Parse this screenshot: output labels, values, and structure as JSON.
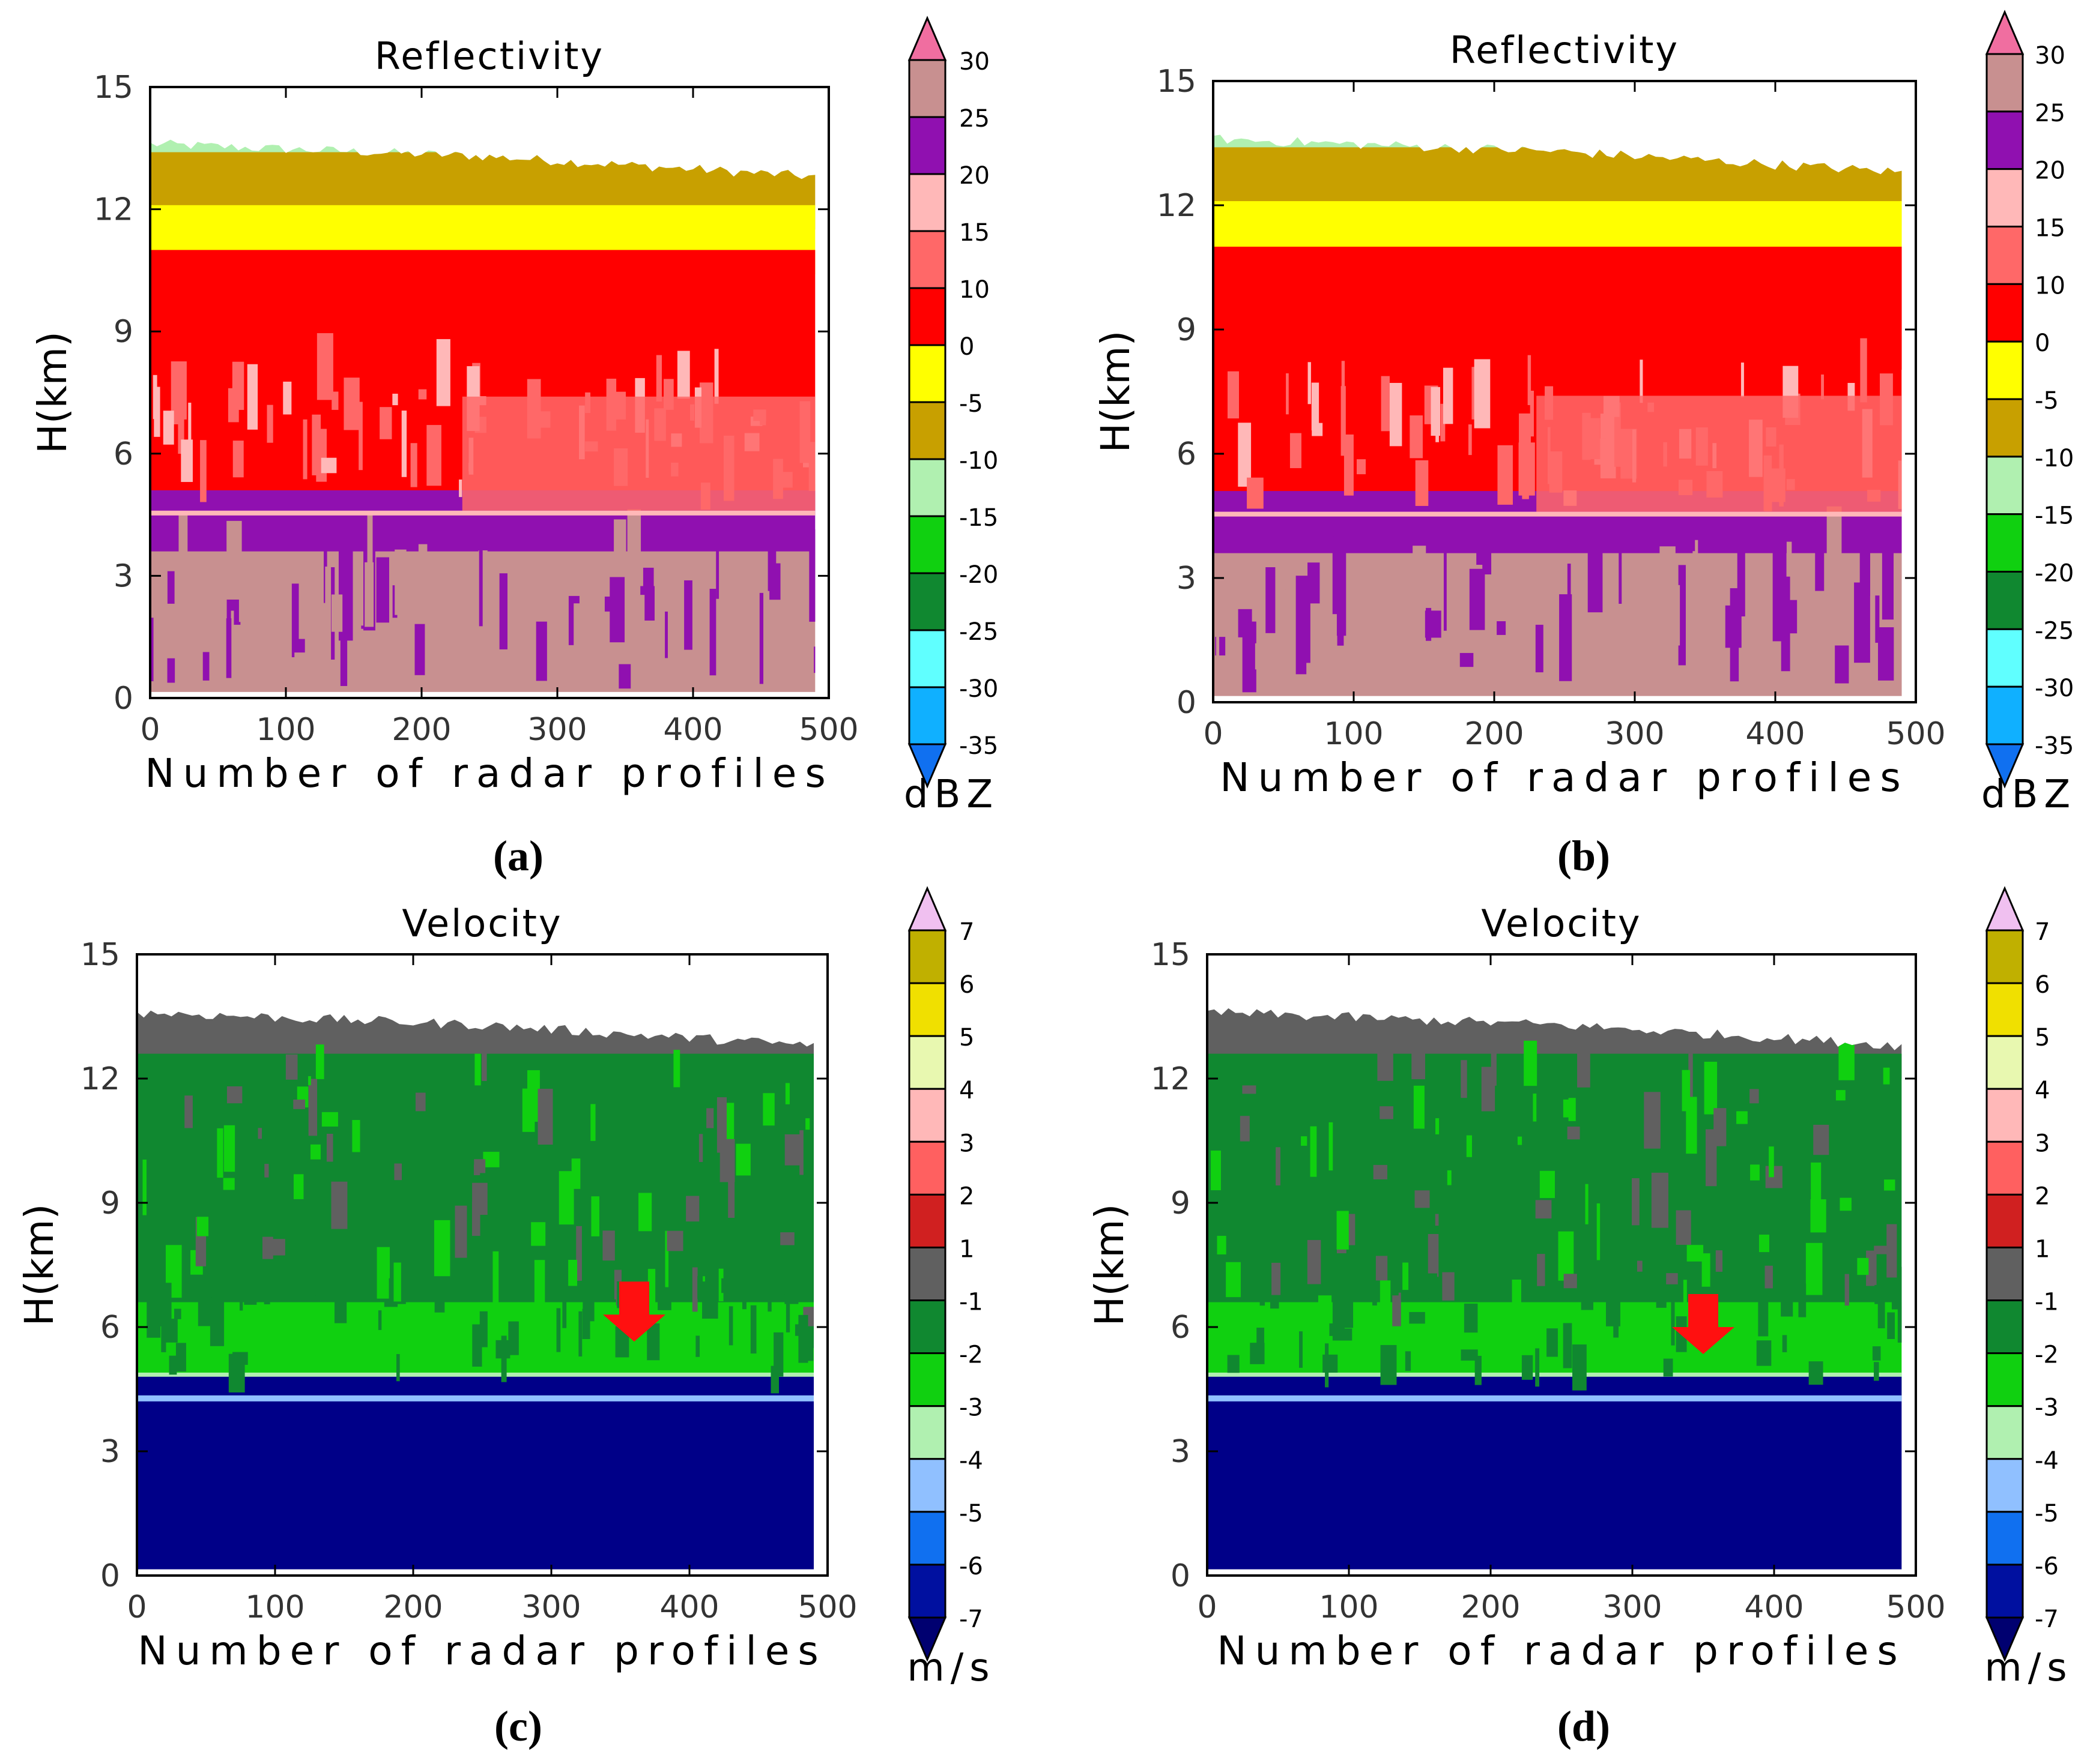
{
  "figure_labels": [
    "(a)",
    "(b)",
    "(c)",
    "(d)"
  ],
  "chart_data": [
    {
      "panel": "a",
      "type": "heatmap",
      "title": "Reflectivity",
      "xlabel": "Number of radar profiles",
      "ylabel": "H(km)",
      "xlim": [
        0,
        500
      ],
      "ylim": [
        0,
        15
      ],
      "xticks": [
        "0",
        "100",
        "200",
        "300",
        "400",
        "500"
      ],
      "yticks": [
        "0",
        "3",
        "6",
        "9",
        "12",
        "15"
      ],
      "colorbar_unit": "dBZ",
      "colorbar_ticks": [
        "30",
        "25",
        "20",
        "15",
        "10",
        "0",
        "-5",
        "-10",
        "-15",
        "-20",
        "-25",
        "-30",
        "-35"
      ],
      "colorbar_colors": [
        "#f06ea0",
        "#c89090",
        "#9010b0",
        "#ffb8b8",
        "#ff6868",
        "#ff0000",
        "#ffff00",
        "#c8a000",
        "#b0f0b0",
        "#10d010",
        "#108830",
        "#60ffff",
        "#10b0ff",
        "#1070f0"
      ],
      "layers": [
        {
          "from_km": 0.0,
          "to_km": 3.0,
          "range_dBZ": "20 to 30",
          "color": "#c89090"
        },
        {
          "from_km": 3.0,
          "to_km": 4.5,
          "range_dBZ": "20 to 25",
          "color": "#9010b0"
        },
        {
          "from_km": 4.5,
          "to_km": 10.4,
          "range_dBZ": "0 to 15",
          "color": "#ff0000"
        },
        {
          "from_km": 10.4,
          "to_km": 11.5,
          "range_dBZ": "-5 to 0",
          "color": "#ffff00"
        },
        {
          "from_km": 11.5,
          "to_km": 12.8,
          "range_dBZ": "-10 to -5",
          "color": "#c8a000"
        },
        {
          "from_km": 12.8,
          "to_km": 13.6,
          "range_dBZ": "-15 to -10",
          "color": "#b0f0b0"
        }
      ],
      "echo_top_km": [
        13.6,
        13.3,
        12.8
      ],
      "arrow_at": null
    },
    {
      "panel": "b",
      "type": "heatmap",
      "title": "Reflectivity",
      "xlabel": "Number of radar profiles",
      "ylabel": "H(km)",
      "xlim": [
        0,
        500
      ],
      "ylim": [
        0,
        15
      ],
      "xticks": [
        "0",
        "100",
        "200",
        "300",
        "400",
        "500"
      ],
      "yticks": [
        "0",
        "3",
        "6",
        "9",
        "12",
        "15"
      ],
      "colorbar_unit": "dBZ",
      "colorbar_ticks": [
        "30",
        "25",
        "20",
        "15",
        "10",
        "0",
        "-5",
        "-10",
        "-15",
        "-20",
        "-25",
        "-30",
        "-35"
      ],
      "colorbar_colors": [
        "#f06ea0",
        "#c89090",
        "#9010b0",
        "#ffb8b8",
        "#ff6868",
        "#ff0000",
        "#ffff00",
        "#c8a000",
        "#b0f0b0",
        "#10d010",
        "#108830",
        "#60ffff",
        "#10b0ff",
        "#1070f0"
      ],
      "layers": [
        {
          "from_km": 0.0,
          "to_km": 3.0,
          "range_dBZ": "20 to 30",
          "color": "#c89090"
        },
        {
          "from_km": 3.0,
          "to_km": 4.5,
          "range_dBZ": "20 to 25",
          "color": "#9010b0"
        },
        {
          "from_km": 4.5,
          "to_km": 10.4,
          "range_dBZ": "0 to 15",
          "color": "#ff0000"
        },
        {
          "from_km": 10.4,
          "to_km": 11.5,
          "range_dBZ": "-5 to 0",
          "color": "#ffff00"
        },
        {
          "from_km": 11.5,
          "to_km": 12.8,
          "range_dBZ": "-10 to -5",
          "color": "#c8a000"
        },
        {
          "from_km": 12.8,
          "to_km": 13.6,
          "range_dBZ": "-15 to -10",
          "color": "#b0f0b0"
        }
      ],
      "echo_top_km": [
        13.6,
        13.3,
        12.8
      ],
      "arrow_at": null
    },
    {
      "panel": "c",
      "type": "heatmap",
      "title": "Velocity",
      "xlabel": "Number of radar profiles",
      "ylabel": "H(km)",
      "xlim": [
        0,
        500
      ],
      "ylim": [
        0,
        15
      ],
      "xticks": [
        "0",
        "100",
        "200",
        "300",
        "400",
        "500"
      ],
      "yticks": [
        "0",
        "3",
        "6",
        "9",
        "12",
        "15"
      ],
      "colorbar_unit": "m/s",
      "colorbar_ticks": [
        "7",
        "6",
        "5",
        "4",
        "3",
        "2",
        "1",
        "-1",
        "-2",
        "-3",
        "-4",
        "-5",
        "-6",
        "-7"
      ],
      "colorbar_colors": [
        "#f0c0f0",
        "#c0b000",
        "#f0e000",
        "#e8f8b0",
        "#ffb8b8",
        "#ff6060",
        "#d02020",
        "#606060",
        "#108830",
        "#10d010",
        "#b0f0b0",
        "#90c0ff",
        "#1070f0",
        "#0010a0",
        "#000070"
      ],
      "layers": [
        {
          "from_km": 0.0,
          "to_km": 4.2,
          "range_ms": "-7 to -6",
          "color": "#000088"
        },
        {
          "from_km": 4.2,
          "to_km": 4.3,
          "range_ms": "-5 to -3",
          "color": "#b0f0b0"
        },
        {
          "from_km": 4.3,
          "to_km": 6.0,
          "range_ms": "-3 to -2",
          "color": "#10d010"
        },
        {
          "from_km": 6.0,
          "to_km": 12.0,
          "range_ms": "-2 to -1",
          "color": "#108830"
        },
        {
          "from_km": 12.0,
          "to_km": 13.5,
          "range_ms": "-1 to 1",
          "color": "#606060"
        }
      ],
      "echo_top_km": [
        13.6,
        13.3,
        12.8
      ],
      "arrow_at": {
        "x": 360,
        "y_km": 6.3
      }
    },
    {
      "panel": "d",
      "type": "heatmap",
      "title": "Velocity",
      "xlabel": "Number of radar profiles",
      "ylabel": "H(km)",
      "xlim": [
        0,
        500
      ],
      "ylim": [
        0,
        15
      ],
      "xticks": [
        "0",
        "100",
        "200",
        "300",
        "400",
        "500"
      ],
      "yticks": [
        "0",
        "3",
        "6",
        "9",
        "12",
        "15"
      ],
      "colorbar_unit": "m/s",
      "colorbar_ticks": [
        "7",
        "6",
        "5",
        "4",
        "3",
        "2",
        "1",
        "-1",
        "-2",
        "-3",
        "-4",
        "-5",
        "-6",
        "-7"
      ],
      "colorbar_colors": [
        "#f0c0f0",
        "#c0b000",
        "#f0e000",
        "#e8f8b0",
        "#ffb8b8",
        "#ff6060",
        "#d02020",
        "#606060",
        "#108830",
        "#10d010",
        "#b0f0b0",
        "#90c0ff",
        "#1070f0",
        "#0010a0",
        "#000070"
      ],
      "layers": [
        {
          "from_km": 0.0,
          "to_km": 4.2,
          "range_ms": "-7 to -6",
          "color": "#000088"
        },
        {
          "from_km": 4.2,
          "to_km": 4.3,
          "range_ms": "-5 to -3",
          "color": "#b0f0b0"
        },
        {
          "from_km": 4.3,
          "to_km": 6.0,
          "range_ms": "-3 to -2",
          "color": "#10d010"
        },
        {
          "from_km": 6.0,
          "to_km": 12.0,
          "range_ms": "-2 to -1",
          "color": "#108830"
        },
        {
          "from_km": 12.0,
          "to_km": 13.5,
          "range_ms": "-1 to 1",
          "color": "#606060"
        }
      ],
      "echo_top_km": [
        13.6,
        13.3,
        12.8
      ],
      "arrow_at": {
        "x": 350,
        "y_km": 6.0
      }
    }
  ]
}
